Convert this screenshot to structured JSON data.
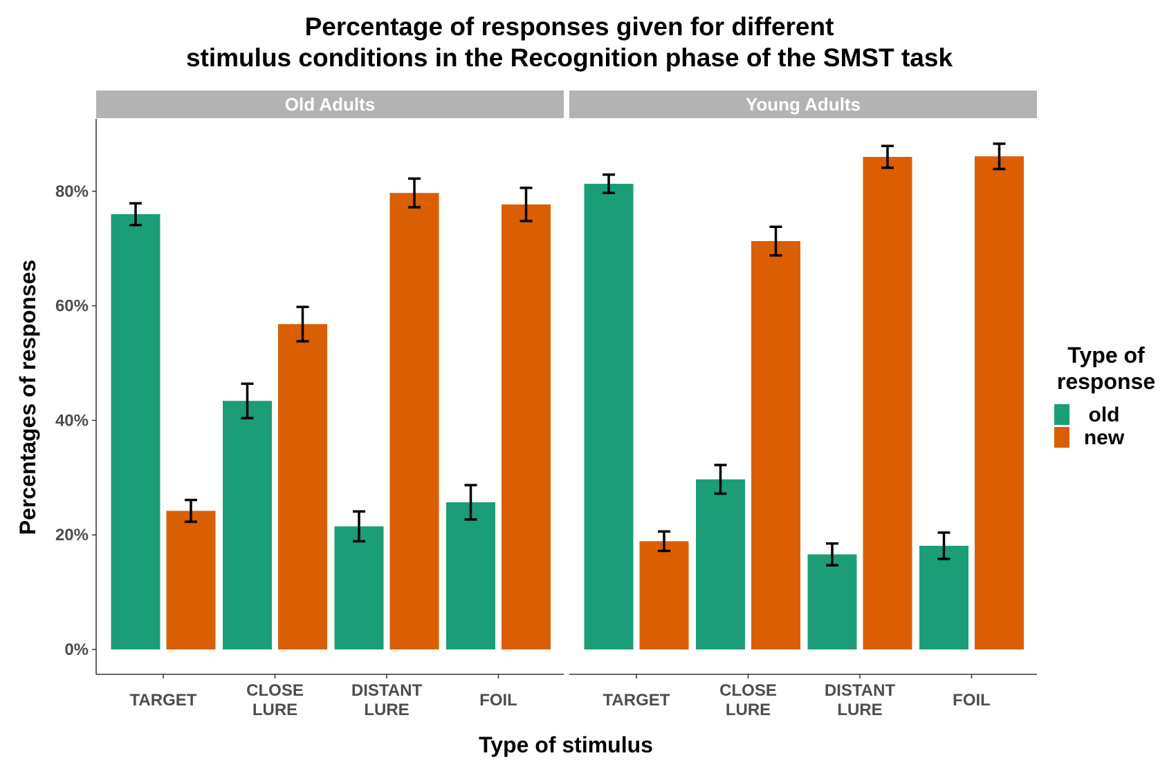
{
  "chart_data": {
    "type": "bar",
    "title_lines": [
      "Percentage of responses given for different",
      "stimulus conditions in the Recognition phase of the SMST task"
    ],
    "xlabel": "Type of stimulus",
    "ylabel": "Percentages of responses",
    "ylim": [
      0,
      90
    ],
    "yticks": [
      {
        "value": 0,
        "label": "0%"
      },
      {
        "value": 20,
        "label": "20%"
      },
      {
        "value": 40,
        "label": "40%"
      },
      {
        "value": 60,
        "label": "60%"
      },
      {
        "value": 80,
        "label": "80%"
      }
    ],
    "grid": false,
    "legend": {
      "title_lines": [
        "Type of",
        "response"
      ],
      "position": "right"
    },
    "categories": [
      {
        "id": "target",
        "label_lines": [
          "TARGET"
        ]
      },
      {
        "id": "close",
        "label_lines": [
          "CLOSE",
          "LURE"
        ]
      },
      {
        "id": "distant",
        "label_lines": [
          "DISTANT",
          "LURE"
        ]
      },
      {
        "id": "foil",
        "label_lines": [
          "FOIL"
        ]
      }
    ],
    "series": [
      {
        "name": "old",
        "color": "#1b9e77"
      },
      {
        "name": "new",
        "color": "#d95f02"
      }
    ],
    "panels": [
      {
        "name": "Old Adults",
        "values": {
          "old": [
            76.0,
            43.4,
            21.5,
            25.7
          ],
          "new": [
            24.2,
            56.8,
            79.7,
            77.7
          ]
        },
        "errors": {
          "old": [
            1.9,
            3.0,
            2.6,
            3.0
          ],
          "new": [
            1.9,
            3.0,
            2.5,
            2.9
          ]
        }
      },
      {
        "name": "Young Adults",
        "values": {
          "old": [
            81.3,
            29.7,
            16.6,
            18.1
          ],
          "new": [
            18.9,
            71.3,
            86.0,
            86.1
          ]
        },
        "errors": {
          "old": [
            1.6,
            2.5,
            1.9,
            2.3
          ],
          "new": [
            1.7,
            2.5,
            1.9,
            2.2
          ]
        }
      }
    ]
  }
}
